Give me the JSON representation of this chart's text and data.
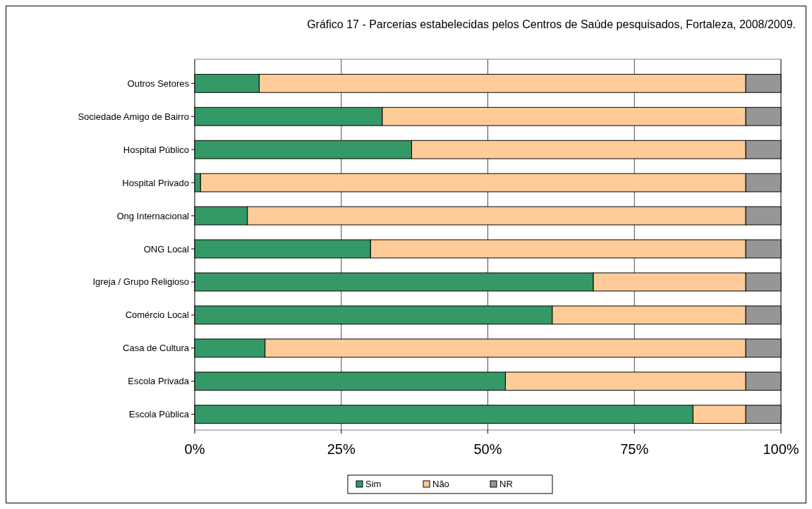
{
  "chart_data": {
    "type": "bar",
    "title": "Gráfico 17 - Parcerias estabelecidas pelos Centros de Saúde pesquisados, Fortaleza, 2008/2009.",
    "orientation": "horizontal",
    "stacked": true,
    "categories": [
      "Outros Setores",
      "Sociedade Amigo de Bairro",
      "Hospital Público",
      "Hospital Privado",
      "Ong Internacional",
      "ONG Local",
      "Igreja / Grupo Religioso",
      "Comércio Local",
      "Casa de Cultura",
      "Escola Privada",
      "Escola Pública"
    ],
    "series": [
      {
        "name": "Sim",
        "color": "#339966",
        "values": [
          11,
          32,
          37,
          1,
          9,
          30,
          68,
          61,
          12,
          53,
          85
        ]
      },
      {
        "name": "Não",
        "color": "#ffcc99",
        "values": [
          83,
          62,
          57,
          93,
          85,
          64,
          26,
          33,
          82,
          41,
          9
        ]
      },
      {
        "name": "NR",
        "color": "#969696",
        "values": [
          6,
          6,
          6,
          6,
          6,
          6,
          6,
          6,
          6,
          6,
          6
        ]
      }
    ],
    "xlim": [
      0,
      100
    ],
    "xticks": [
      {
        "value": 0,
        "label": "0%"
      },
      {
        "value": 25,
        "label": "25%"
      },
      {
        "value": 50,
        "label": "50%"
      },
      {
        "value": 75,
        "label": "75%"
      },
      {
        "value": 100,
        "label": "100%"
      }
    ],
    "grid": "x",
    "legend": "bottom"
  }
}
